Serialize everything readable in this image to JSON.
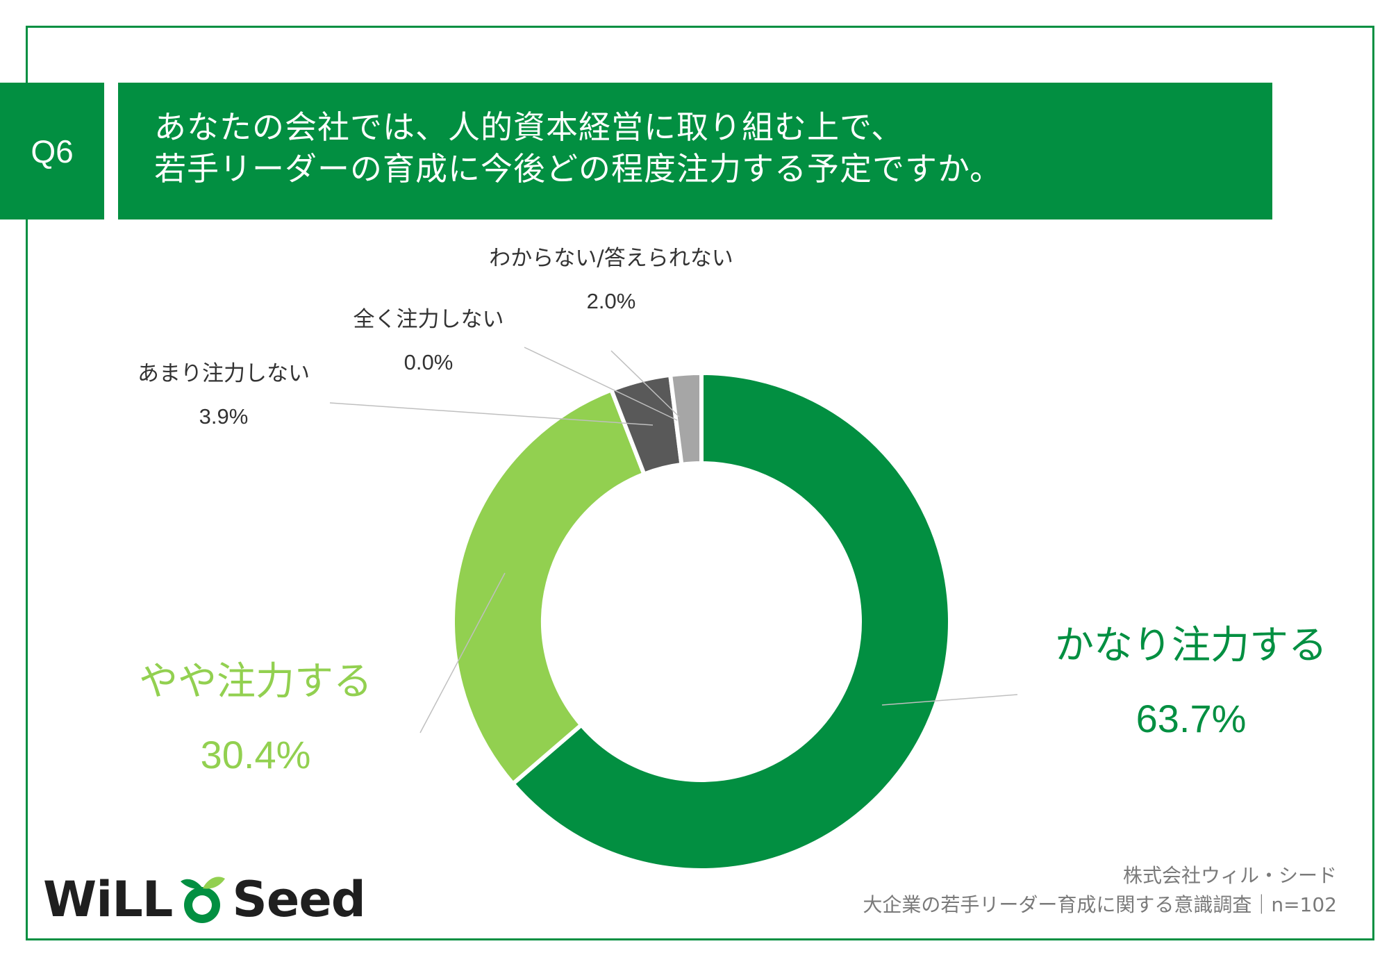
{
  "question": {
    "number": "Q6",
    "line1": "あなたの会社では、人的資本経営に取り組む上で、",
    "line2": "若手リーダーの育成に今後どの程度注力する予定ですか。"
  },
  "colors": {
    "brand_green": "#028f41",
    "light_green": "#92d050",
    "dark_gray": "#595959",
    "light_gray": "#a6a6a6"
  },
  "chart_data": {
    "type": "pie",
    "donut": true,
    "categories": [
      "かなり注力する",
      "やや注力する",
      "あまり注力しない",
      "全く注力しない",
      "わからない/答えられない"
    ],
    "values": [
      63.7,
      30.4,
      3.9,
      0.0,
      2.0
    ],
    "value_labels": [
      "63.7%",
      "30.4%",
      "3.9%",
      "0.0%",
      "2.0%"
    ],
    "colors": [
      "#028f41",
      "#92d050",
      "#595959",
      "#595959",
      "#a6a6a6"
    ],
    "start_angle": "top",
    "direction": "clockwise"
  },
  "footer": {
    "company": "株式会社ウィル・シード",
    "survey": "大企業の若手リーダー育成に関する意識調査｜n=102"
  },
  "logo": {
    "text_left": "WiLL",
    "text_right": "Seed"
  }
}
